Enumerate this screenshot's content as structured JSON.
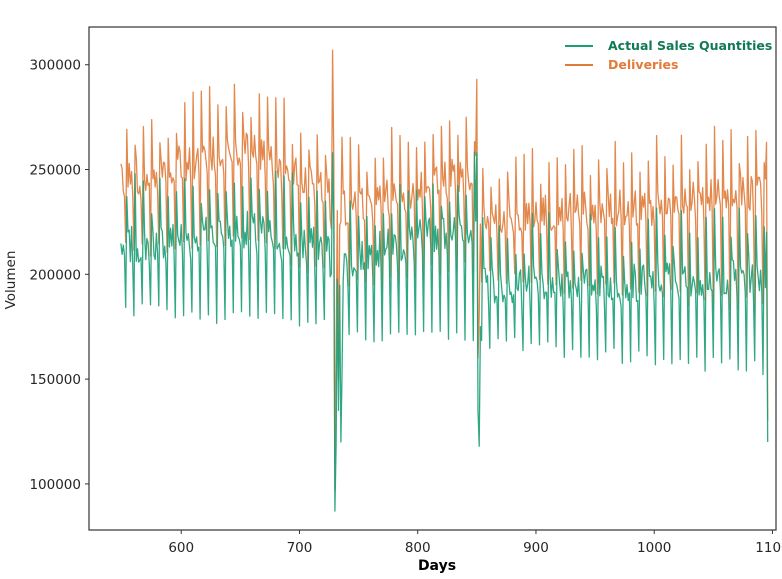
{
  "chart_data": {
    "type": "line",
    "title": "",
    "xlabel": "Days",
    "ylabel": "Volumen",
    "xlim": [
      522,
      1103
    ],
    "ylim": [
      78000,
      318000
    ],
    "xticks": [
      600,
      700,
      800,
      900,
      1000,
      1100
    ],
    "yticks": [
      100000,
      150000,
      200000,
      250000,
      300000
    ],
    "x_tick_labels": [
      "600",
      "700",
      "800",
      "900",
      "1000",
      "1100"
    ],
    "y_tick_labels": [
      "100000",
      "150000",
      "200000",
      "250000",
      "300000"
    ],
    "grid": false,
    "legend_position": "top-right",
    "series": [
      {
        "name": "Actual Sales Quantities",
        "color": "#1b9e77",
        "x_start": 549,
        "x_end": 1096,
        "step": 1,
        "segments": [
          {
            "x0": 549,
            "x1": 650,
            "base0": 213000,
            "base1": 222000,
            "trough0": 183000,
            "trough1": 180000
          },
          {
            "x0": 650,
            "x1": 725,
            "base0": 222000,
            "base1": 212000,
            "trough0": 180000,
            "trough1": 175000
          },
          {
            "x0": 725,
            "x1": 745,
            "base0": 205000,
            "base1": 205000,
            "trough0": 172000,
            "trough1": 172000
          },
          {
            "x0": 745,
            "x1": 850,
            "base0": 208000,
            "base1": 225000,
            "trough0": 172000,
            "trough1": 168000
          },
          {
            "x0": 850,
            "x1": 1000,
            "base0": 195000,
            "base1": 196000,
            "trough0": 168000,
            "trough1": 160000
          },
          {
            "x0": 1000,
            "x1": 1096,
            "base0": 198000,
            "base1": 200000,
            "trough0": 158000,
            "trough1": 155000
          }
        ],
        "anomalies": [
          {
            "x": 728,
            "y": 258000
          },
          {
            "x": 730,
            "y": 87000
          },
          {
            "x": 731,
            "y": 118000
          },
          {
            "x": 733,
            "y": 135000
          },
          {
            "x": 735,
            "y": 120000
          },
          {
            "x": 736,
            "y": 152000
          },
          {
            "x": 850,
            "y": 258000
          },
          {
            "x": 851,
            "y": 135000
          },
          {
            "x": 852,
            "y": 118000
          },
          {
            "x": 853,
            "y": 175000
          },
          {
            "x": 1095,
            "y": 220000
          },
          {
            "x": 1096,
            "y": 120000
          }
        ]
      },
      {
        "name": "Deliveries",
        "color": "#e07b39",
        "x_start": 549,
        "x_end": 1096,
        "step": 1,
        "segments": [
          {
            "x0": 549,
            "x1": 660,
            "base0": 245000,
            "base1": 262000,
            "trough0": 212000,
            "trough1": 215000
          },
          {
            "x0": 660,
            "x1": 725,
            "base0": 258000,
            "base1": 240000,
            "trough0": 215000,
            "trough1": 200000
          },
          {
            "x0": 725,
            "x1": 745,
            "base0": 232000,
            "base1": 232000,
            "trough0": 195000,
            "trough1": 195000
          },
          {
            "x0": 745,
            "x1": 850,
            "base0": 232000,
            "base1": 250000,
            "trough0": 195000,
            "trough1": 205000
          },
          {
            "x0": 850,
            "x1": 1000,
            "base0": 228000,
            "base1": 232000,
            "trough0": 200000,
            "trough1": 190000
          },
          {
            "x0": 1000,
            "x1": 1096,
            "base0": 235000,
            "base1": 240000,
            "trough0": 190000,
            "trough1": 185000
          }
        ],
        "anomalies": [
          {
            "x": 728,
            "y": 307000
          },
          {
            "x": 730,
            "y": 97000
          },
          {
            "x": 731,
            "y": 165000
          },
          {
            "x": 733,
            "y": 150000
          },
          {
            "x": 735,
            "y": 225000
          },
          {
            "x": 850,
            "y": 293000
          },
          {
            "x": 851,
            "y": 160000
          },
          {
            "x": 852,
            "y": 180000
          },
          {
            "x": 1095,
            "y": 263000
          },
          {
            "x": 1096,
            "y": 130000
          }
        ]
      }
    ]
  }
}
